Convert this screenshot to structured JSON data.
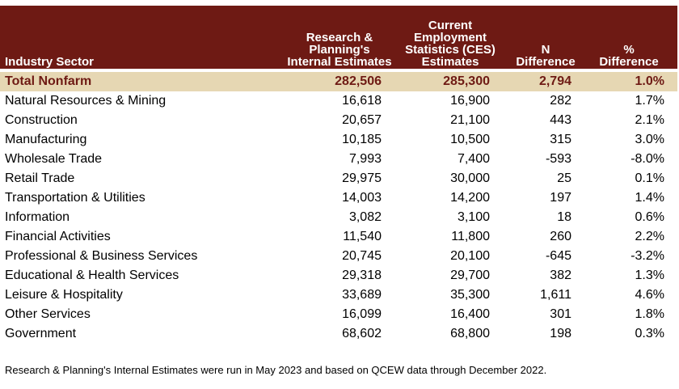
{
  "header": {
    "col0": "Industry Sector",
    "col1": [
      "Research &",
      "Planning's",
      "Internal Estimates"
    ],
    "col2": [
      "Current",
      "Employment",
      "Statistics (CES)",
      "Estimates"
    ],
    "col3": [
      "N",
      "Difference"
    ],
    "col4": [
      "%",
      "Difference"
    ]
  },
  "total": {
    "sector": "Total Nonfarm",
    "internal": "282,506",
    "ces": "285,300",
    "n_diff": "2,794",
    "pct_diff": "1.0%"
  },
  "rows": [
    {
      "sector": "Natural Resources & Mining",
      "internal": "16,618",
      "ces": "16,900",
      "n_diff": "282",
      "pct_diff": "1.7%"
    },
    {
      "sector": "Construction",
      "internal": "20,657",
      "ces": "21,100",
      "n_diff": "443",
      "pct_diff": "2.1%"
    },
    {
      "sector": "Manufacturing",
      "internal": "10,185",
      "ces": "10,500",
      "n_diff": "315",
      "pct_diff": "3.0%"
    },
    {
      "sector": "Wholesale Trade",
      "internal": "7,993",
      "ces": "7,400",
      "n_diff": "-593",
      "pct_diff": "-8.0%"
    },
    {
      "sector": "Retail Trade",
      "internal": "29,975",
      "ces": "30,000",
      "n_diff": "25",
      "pct_diff": "0.1%"
    },
    {
      "sector": "Transportation & Utilities",
      "internal": "14,003",
      "ces": "14,200",
      "n_diff": "197",
      "pct_diff": "1.4%"
    },
    {
      "sector": "Information",
      "internal": "3,082",
      "ces": "3,100",
      "n_diff": "18",
      "pct_diff": "0.6%"
    },
    {
      "sector": "Financial Activities",
      "internal": "11,540",
      "ces": "11,800",
      "n_diff": "260",
      "pct_diff": "2.2%"
    },
    {
      "sector": "Professional & Business Services",
      "internal": "20,745",
      "ces": "20,100",
      "n_diff": "-645",
      "pct_diff": "-3.2%"
    },
    {
      "sector": "Educational & Health Services",
      "internal": "29,318",
      "ces": "29,700",
      "n_diff": "382",
      "pct_diff": "1.3%"
    },
    {
      "sector": "Leisure & Hospitality",
      "internal": "33,689",
      "ces": "35,300",
      "n_diff": "1,611",
      "pct_diff": "4.6%"
    },
    {
      "sector": "Other Services",
      "internal": "16,099",
      "ces": "16,400",
      "n_diff": "301",
      "pct_diff": "1.8%"
    },
    {
      "sector": "Government",
      "internal": "68,602",
      "ces": "68,800",
      "n_diff": "198",
      "pct_diff": "0.3%"
    }
  ],
  "footnote": "Research & Planning's Internal Estimates were run in May 2023 and based on QCEW data through December 2022.",
  "colors": {
    "header_bg": "#6e1a14",
    "total_bg": "#e6d7b3"
  }
}
